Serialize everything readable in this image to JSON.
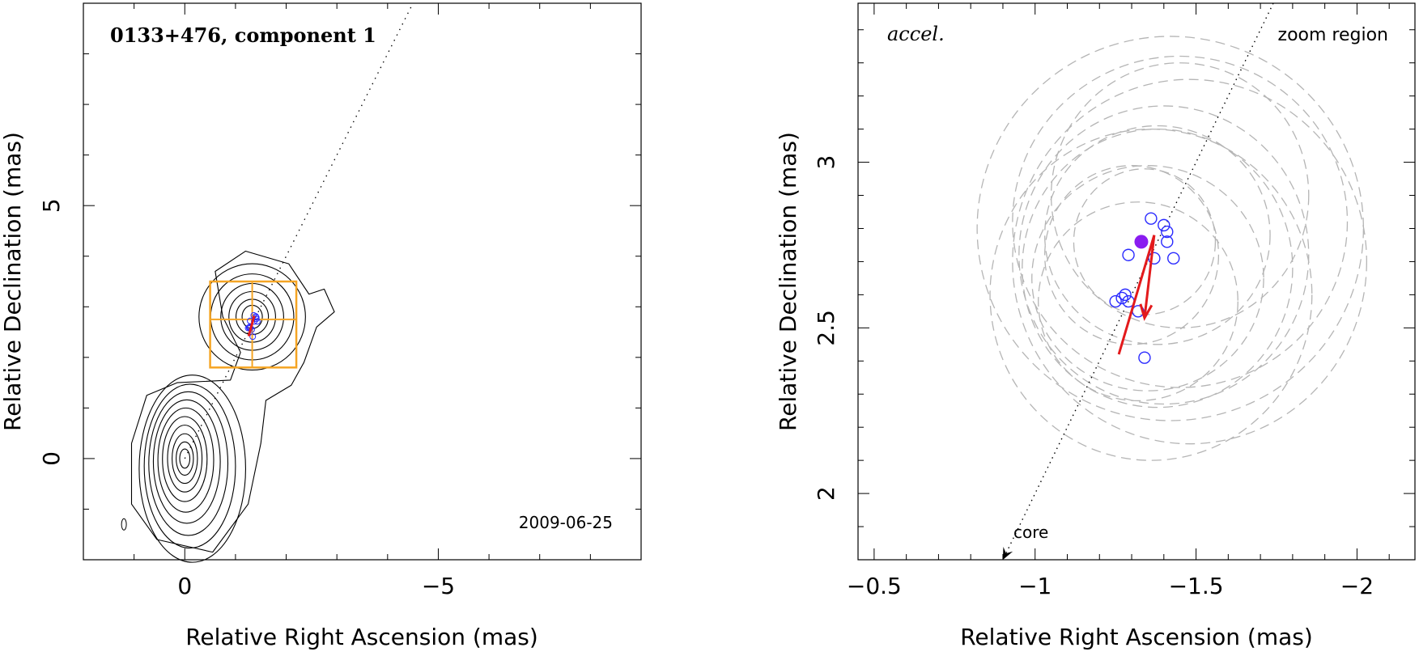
{
  "chart_data": [
    {
      "type": "contour",
      "title": "0133+476, component 1",
      "epoch": "2009-06-25",
      "xlabel": "Relative Right Ascension (mas)",
      "ylabel": "Relative Declination (mas)",
      "xlim": [
        2,
        -9
      ],
      "ylim": [
        -2,
        9
      ],
      "xtick_labels": [
        {
          "v": 0,
          "t": "0"
        },
        {
          "v": -5,
          "t": "−5"
        }
      ],
      "ytick_labels": [
        {
          "v": 0,
          "t": "0"
        },
        {
          "v": 5,
          "t": "5"
        }
      ],
      "core": {
        "x": 0,
        "y": 0
      },
      "component_position": {
        "x": -1.33,
        "y": 2.75
      },
      "zoom_region": {
        "x": [
          -0.5,
          -2.2
        ],
        "y": [
          1.8,
          3.5
        ]
      },
      "jet_axis_end": {
        "x": -4.5,
        "y": 9
      }
    },
    {
      "type": "scatter",
      "label": "accel.",
      "corner_label": "zoom region",
      "xlabel": "Relative Right Ascension (mas)",
      "ylabel": "Relative Declination (mas)",
      "xlim": [
        -0.45,
        -2.18
      ],
      "ylim": [
        1.8,
        3.48
      ],
      "xtick_labels": [
        {
          "v": -0.5,
          "t": "−0.5"
        },
        {
          "v": -1,
          "t": "−1"
        },
        {
          "v": -1.5,
          "t": "−1.5"
        },
        {
          "v": -2,
          "t": "−2"
        }
      ],
      "ytick_labels": [
        {
          "v": 2,
          "t": "2"
        },
        {
          "v": 2.5,
          "t": "2.5"
        },
        {
          "v": 3,
          "t": "3"
        }
      ],
      "core_label": "core",
      "points": [
        {
          "x": -1.36,
          "y": 2.83
        },
        {
          "x": -1.4,
          "y": 2.81
        },
        {
          "x": -1.41,
          "y": 2.79
        },
        {
          "x": -1.41,
          "y": 2.76
        },
        {
          "x": -1.29,
          "y": 2.72
        },
        {
          "x": -1.37,
          "y": 2.71
        },
        {
          "x": -1.43,
          "y": 2.71
        },
        {
          "x": -1.28,
          "y": 2.6
        },
        {
          "x": -1.27,
          "y": 2.59
        },
        {
          "x": -1.29,
          "y": 2.58
        },
        {
          "x": -1.25,
          "y": 2.58
        },
        {
          "x": -1.32,
          "y": 2.55
        },
        {
          "x": -1.34,
          "y": 2.41
        }
      ],
      "mean_position": {
        "x": -1.33,
        "y": 2.76
      },
      "fit_path": {
        "x": [
          -1.26,
          -1.37
        ],
        "y": [
          2.42,
          2.78
        ]
      },
      "velocity_arrow": {
        "from": {
          "x": -1.37,
          "y": 2.78
        },
        "to": {
          "x": -1.34,
          "y": 2.53
        }
      },
      "error_ellipses": [
        {
          "cx": -1.3,
          "cy": 2.72,
          "rx": 0.27,
          "ry": 0.27
        },
        {
          "cx": -1.38,
          "cy": 2.78,
          "rx": 0.35,
          "ry": 0.33
        },
        {
          "cx": -1.4,
          "cy": 2.72,
          "rx": 0.45,
          "ry": 0.45
        },
        {
          "cx": -1.36,
          "cy": 2.6,
          "rx": 0.5,
          "ry": 0.5
        },
        {
          "cx": -1.42,
          "cy": 2.8,
          "rx": 0.6,
          "ry": 0.58
        },
        {
          "cx": -1.45,
          "cy": 2.9,
          "rx": 0.4,
          "ry": 0.4
        },
        {
          "cx": -1.35,
          "cy": 2.65,
          "rx": 0.36,
          "ry": 0.34
        },
        {
          "cx": -1.32,
          "cy": 2.58,
          "rx": 0.31,
          "ry": 0.3
        },
        {
          "cx": -1.48,
          "cy": 2.7,
          "rx": 0.55,
          "ry": 0.55
        },
        {
          "cx": -1.34,
          "cy": 2.76,
          "rx": 0.22,
          "ry": 0.22
        },
        {
          "cx": -1.45,
          "cy": 2.82,
          "rx": 0.52,
          "ry": 0.5
        },
        {
          "cx": -1.38,
          "cy": 2.68,
          "rx": 0.42,
          "ry": 0.42
        }
      ]
    }
  ]
}
